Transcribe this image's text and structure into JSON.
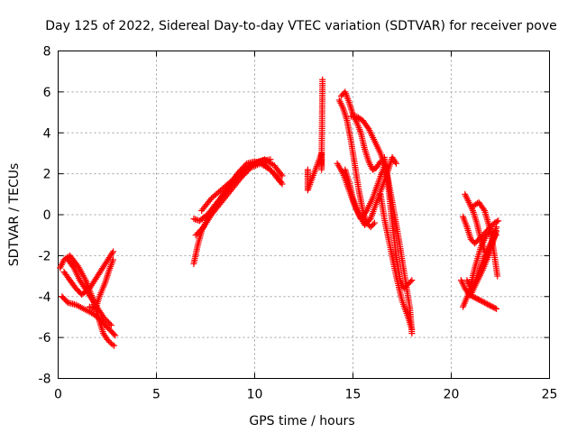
{
  "chart_data": {
    "type": "scatter",
    "title": "Day 125 of 2022, Sidereal Day-to-day VTEC variation (SDTVAR) for receiver pove",
    "xlabel": "GPS time / hours",
    "ylabel": "SDTVAR / TECUs",
    "xlim": [
      0,
      25
    ],
    "ylim": [
      -8,
      8
    ],
    "xticks": [
      0,
      5,
      10,
      15,
      20,
      25
    ],
    "yticks": [
      -8,
      -6,
      -4,
      -2,
      0,
      2,
      4,
      6,
      8
    ],
    "grid": true,
    "marker": "+",
    "color": "#ff0000",
    "traces": [
      {
        "x": [
          0.1,
          0.3,
          0.6,
          1.0,
          1.4,
          1.8,
          2.1,
          2.3,
          2.5,
          2.7,
          2.85
        ],
        "y": [
          -2.6,
          -2.2,
          -2.0,
          -2.5,
          -3.2,
          -4.2,
          -5.2,
          -5.8,
          -6.1,
          -6.3,
          -6.4
        ]
      },
      {
        "x": [
          0.2,
          0.5,
          0.9,
          1.3,
          1.7,
          2.0,
          2.3,
          2.6,
          2.9
        ],
        "y": [
          -4.0,
          -4.3,
          -4.4,
          -4.6,
          -4.8,
          -5.0,
          -5.3,
          -5.6,
          -5.9
        ]
      },
      {
        "x": [
          0.3,
          0.6,
          0.9,
          1.2,
          1.6,
          2.0,
          2.4,
          2.8
        ],
        "y": [
          -2.8,
          -3.2,
          -3.6,
          -3.9,
          -3.6,
          -3.0,
          -2.4,
          -1.8
        ]
      },
      {
        "x": [
          0.5,
          0.8,
          1.1,
          1.5,
          1.9,
          2.3,
          2.7
        ],
        "y": [
          -2.2,
          -2.6,
          -3.2,
          -3.8,
          -4.4,
          -5.0,
          -5.4
        ]
      },
      {
        "x": [
          1.6,
          1.9,
          2.1,
          2.4,
          2.6,
          2.8
        ],
        "y": [
          -4.5,
          -4.6,
          -4.0,
          -3.3,
          -2.7,
          -2.2
        ]
      },
      {
        "x": [
          6.9,
          7.1,
          7.3,
          7.6,
          8.0,
          8.4,
          8.8,
          9.2,
          9.6,
          10.0,
          10.4,
          10.8,
          11.2,
          11.4
        ],
        "y": [
          -2.4,
          -1.5,
          -0.8,
          -0.2,
          0.4,
          1.0,
          1.6,
          2.1,
          2.5,
          2.6,
          2.5,
          2.2,
          1.8,
          1.5
        ]
      },
      {
        "x": [
          6.9,
          7.2,
          7.6,
          8.0,
          8.5,
          9.0,
          9.5,
          10.0,
          10.5,
          11.0,
          11.4
        ],
        "y": [
          -0.2,
          -0.3,
          0.0,
          0.5,
          1.1,
          1.7,
          2.2,
          2.5,
          2.7,
          2.4,
          1.9
        ]
      },
      {
        "x": [
          7.0,
          7.4,
          7.8,
          8.3,
          8.8,
          9.3,
          9.8,
          10.3,
          10.8,
          11.3
        ],
        "y": [
          -1.0,
          -0.6,
          0.0,
          0.6,
          1.2,
          1.8,
          2.3,
          2.5,
          2.2,
          1.6
        ]
      },
      {
        "x": [
          7.3,
          7.8,
          8.4,
          9.0,
          9.6,
          10.2,
          10.8
        ],
        "y": [
          0.2,
          0.8,
          1.3,
          1.8,
          2.3,
          2.6,
          2.7
        ]
      },
      {
        "x": [
          12.7,
          12.7,
          12.7,
          13.4,
          13.4,
          13.4,
          13.45
        ],
        "y": [
          2.2,
          1.8,
          1.2,
          3.0,
          2.8,
          2.2,
          6.6
        ]
      },
      {
        "x": [
          14.3,
          14.5,
          14.7,
          14.9,
          15.1,
          15.3,
          15.5,
          15.7,
          15.9,
          16.1
        ],
        "y": [
          5.6,
          5.2,
          4.6,
          3.6,
          2.4,
          1.2,
          0.2,
          -0.4,
          -0.6,
          -0.4
        ]
      },
      {
        "x": [
          14.4,
          14.6,
          14.8,
          15.0,
          15.2,
          15.4,
          15.6,
          15.8,
          16.0,
          16.2,
          16.4
        ],
        "y": [
          5.8,
          6.0,
          5.5,
          4.9,
          4.5,
          4.0,
          3.2,
          2.6,
          2.2,
          2.3,
          2.6
        ]
      },
      {
        "x": [
          14.2,
          14.5,
          14.8,
          15.1,
          15.4,
          15.7,
          16.0,
          16.3,
          16.6
        ],
        "y": [
          2.5,
          2.0,
          1.2,
          0.4,
          -0.2,
          0.2,
          0.8,
          1.6,
          2.4
        ]
      },
      {
        "x": [
          14.6,
          14.8,
          15.0,
          15.3,
          15.6,
          15.9,
          16.2,
          16.5,
          16.8,
          17.0,
          17.2
        ],
        "y": [
          2.2,
          1.6,
          0.8,
          0.0,
          -0.5,
          -0.2,
          0.6,
          1.4,
          2.2,
          2.8,
          2.5
        ]
      },
      {
        "x": [
          14.9,
          15.2,
          15.5,
          15.8,
          16.1,
          16.4,
          16.7,
          17.0,
          17.3,
          17.6,
          17.9,
          18.0
        ],
        "y": [
          4.8,
          4.8,
          4.6,
          4.2,
          3.6,
          3.0,
          2.2,
          0.6,
          -1.0,
          -2.8,
          -4.6,
          -5.8
        ]
      },
      {
        "x": [
          16.6,
          16.8,
          17.0,
          17.2,
          17.4,
          17.6,
          17.8,
          18.0
        ],
        "y": [
          2.8,
          1.4,
          -0.4,
          -2.0,
          -3.2,
          -3.6,
          -3.4,
          -3.2
        ]
      },
      {
        "x": [
          16.4,
          16.6,
          16.9,
          17.2,
          17.5,
          17.8,
          18.0
        ],
        "y": [
          1.0,
          -0.2,
          -1.6,
          -3.0,
          -4.2,
          -5.0,
          -5.6
        ]
      },
      {
        "x": [
          20.5,
          20.7,
          20.9,
          21.1,
          21.3,
          21.5,
          21.7,
          21.9,
          22.1,
          22.3
        ],
        "y": [
          -3.2,
          -3.6,
          -3.9,
          -4.0,
          -4.1,
          -4.2,
          -4.3,
          -4.4,
          -4.5,
          -4.6
        ]
      },
      {
        "x": [
          20.6,
          20.8,
          21.0,
          21.2,
          21.4,
          21.6,
          21.8,
          22.0,
          22.2,
          22.4
        ],
        "y": [
          -0.1,
          -0.6,
          -1.2,
          -1.4,
          -1.2,
          -1.0,
          -0.8,
          -0.6,
          -0.4,
          -0.3
        ]
      },
      {
        "x": [
          20.7,
          20.9,
          21.1,
          21.3,
          21.5,
          21.7,
          21.9,
          22.1,
          22.3
        ],
        "y": [
          1.0,
          0.6,
          0.2,
          -0.4,
          -1.2,
          -1.8,
          -2.0,
          -1.4,
          -0.8
        ]
      },
      {
        "x": [
          20.6,
          20.9,
          21.2,
          21.5,
          21.8,
          22.1,
          22.3
        ],
        "y": [
          -4.5,
          -3.8,
          -2.6,
          -1.6,
          -1.0,
          -0.8,
          -1.0
        ]
      },
      {
        "x": [
          21.0,
          21.3,
          21.6,
          21.9,
          22.1,
          22.3
        ],
        "y": [
          -3.9,
          -3.3,
          -2.7,
          -2.0,
          -1.2,
          -0.6
        ]
      },
      {
        "x": [
          21.1,
          21.4,
          21.7,
          22.0,
          22.2,
          22.35
        ],
        "y": [
          0.4,
          0.6,
          0.2,
          -0.8,
          -2.0,
          -3.0
        ]
      },
      {
        "x": [
          20.8,
          21.0,
          21.2,
          21.4,
          21.6,
          21.8,
          22.0,
          22.2
        ],
        "y": [
          -3.2,
          -3.6,
          -3.3,
          -2.8,
          -2.3,
          -1.8,
          -1.4,
          -1.1
        ]
      }
    ]
  }
}
